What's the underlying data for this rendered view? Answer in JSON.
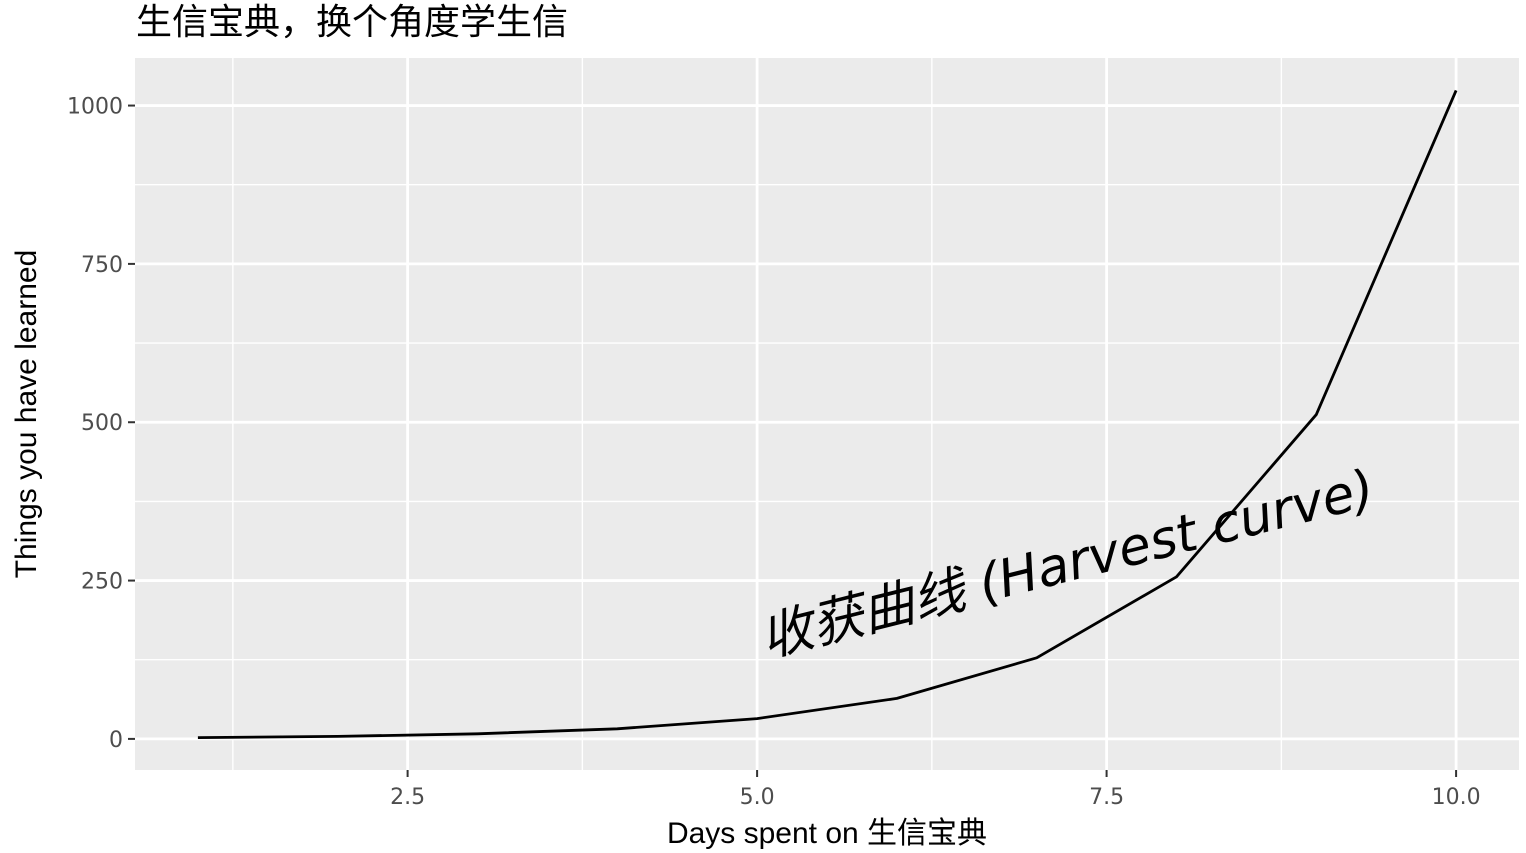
{
  "chart_data": {
    "type": "line",
    "title": "生信宝典，换个角度学生信",
    "xlabel": "Days spent on 生信宝典",
    "ylabel": "Things you have learned",
    "x": [
      1,
      2,
      3,
      4,
      5,
      6,
      7,
      8,
      9,
      10
    ],
    "series": [
      {
        "values": [
          2,
          4,
          8,
          16,
          32,
          64,
          128,
          256,
          512,
          1024
        ]
      }
    ],
    "xlim": [
      0.55,
      10.45
    ],
    "ylim": [
      -49.1,
      1075.1
    ],
    "xticks": [
      2.5,
      5.0,
      7.5,
      10.0
    ],
    "xtick_labels": [
      "2.5",
      "5.0",
      "7.5",
      "10.0"
    ],
    "yticks": [
      0,
      250,
      500,
      750,
      1000
    ],
    "ytick_labels": [
      "0",
      "250",
      "500",
      "750",
      "1000"
    ],
    "grid": true,
    "annotations": [
      {
        "text": "收获曲线 (Harvest curve)",
        "x": 7.25,
        "y": 250,
        "angle_deg": 14
      }
    ],
    "colors": {
      "panel": "#ebebeb",
      "grid": "#ffffff",
      "line": "#000000",
      "tick_text": "#4d4d4d"
    }
  }
}
